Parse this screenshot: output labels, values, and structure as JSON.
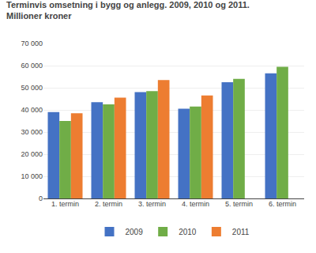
{
  "chart_data": {
    "type": "bar",
    "title": "Terminvis omsetning i bygg og anlegg. 2009, 2010 og 2011.",
    "subtitle": "Millioner kroner",
    "categories": [
      "1. termin",
      "2. termin",
      "3. termin",
      "4. termin",
      "5. termin",
      "6. termin"
    ],
    "series": [
      {
        "name": "2009",
        "color": "#4472C4",
        "values": [
          39000,
          43500,
          48000,
          40500,
          52500,
          56500
        ]
      },
      {
        "name": "2010",
        "color": "#70AD47",
        "values": [
          35000,
          42500,
          48500,
          41500,
          54000,
          59500
        ]
      },
      {
        "name": "2011",
        "color": "#ED7D31",
        "values": [
          38500,
          45500,
          53500,
          46500,
          null,
          null
        ]
      }
    ],
    "ylim": [
      0,
      70000
    ],
    "yticks": [
      0,
      {
        "value": 10000,
        "label": "10 000"
      },
      {
        "value": 20000,
        "label": "20 000"
      },
      {
        "value": 30000,
        "label": "30 000"
      },
      {
        "value": 40000,
        "label": "40 000"
      },
      {
        "value": 50000,
        "label": "50 000"
      },
      {
        "value": 60000,
        "label": "60 000"
      },
      {
        "value": 70000,
        "label": "70 000"
      }
    ],
    "grid": true,
    "legend": "bottom"
  }
}
